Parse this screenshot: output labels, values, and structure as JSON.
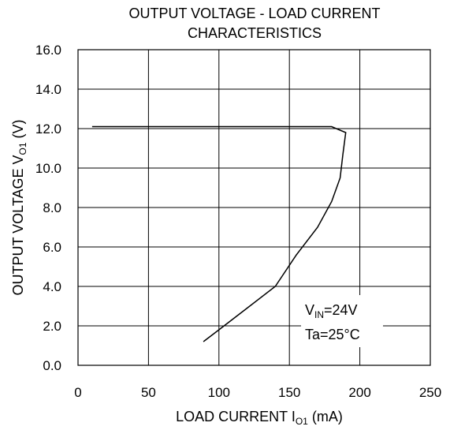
{
  "chart_data": {
    "type": "line",
    "title_lines": [
      "OUTPUT VOLTAGE - LOAD CURRENT",
      "CHARACTERISTICS"
    ],
    "xlabel": {
      "main": "LOAD CURRENT I",
      "sub": "O1",
      "unit": " (mA)"
    },
    "ylabel": {
      "main": "OUTPUT VOLTAGE V",
      "sub": "O1",
      "unit": " (V)"
    },
    "xlim": [
      0,
      250
    ],
    "ylim": [
      0,
      16
    ],
    "x_ticks": [
      "0",
      "50",
      "100",
      "150",
      "200",
      "250"
    ],
    "x_tick_values": [
      0,
      50,
      100,
      150,
      200,
      250
    ],
    "y_ticks": [
      "0.0",
      "2.0",
      "4.0",
      "6.0",
      "8.0",
      "10.0",
      "12.0",
      "14.0",
      "16.0"
    ],
    "y_tick_values": [
      0,
      2,
      4,
      6,
      8,
      10,
      12,
      14,
      16
    ],
    "grid": true,
    "series": [
      {
        "x": [
          10,
          180,
          190,
          188,
          186,
          180,
          170,
          155,
          140,
          120,
          100,
          89
        ],
        "y": [
          12.1,
          12.1,
          11.8,
          10.7,
          9.5,
          8.3,
          7.0,
          5.6,
          4.0,
          2.9,
          1.8,
          1.2
        ]
      }
    ],
    "annotations": [
      {
        "main": "V",
        "sub": "IN",
        "rest": "=24V"
      },
      {
        "text": "Ta=25°C"
      }
    ]
  }
}
